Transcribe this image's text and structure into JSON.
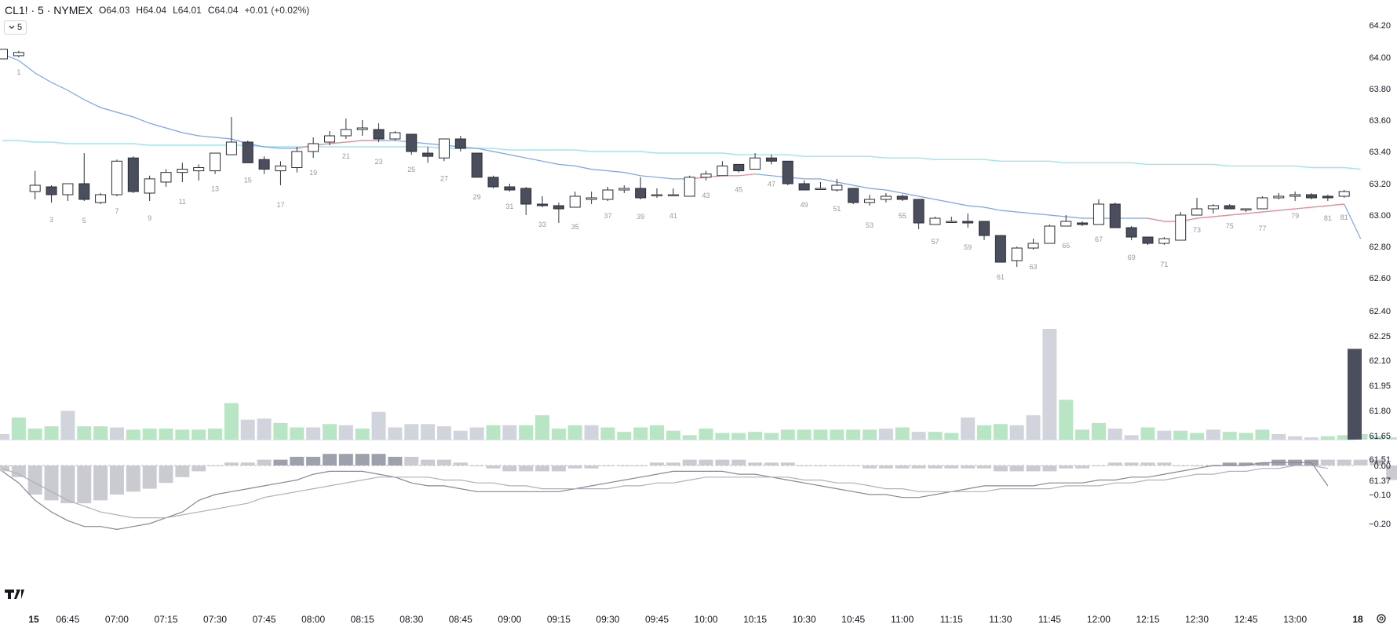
{
  "header": {
    "symbol": "CL1! · 5 · NYMEX",
    "open_key": "O",
    "open_val": "64.03",
    "high_key": "H",
    "high_val": "64.04",
    "low_key": "L",
    "low_val": "64.01",
    "close_key": "C",
    "close_val": "64.04",
    "change": "+0.01 (+0.02%)"
  },
  "collapse_button": {
    "label": "5"
  },
  "colors": {
    "bull_body": "#ffffff",
    "bear_body": "#4b4e5c",
    "candle_border": "#2a2e39",
    "fast_ma": "#7aa3f2",
    "fast_ma_red": "#f28b8b",
    "slow_ma": "#9fe5eb",
    "vol_green": "#b8e5c4",
    "vol_gray": "#d1d4dc",
    "vol_dark": "#4b4e5c",
    "macd_hist": "#c9cbd1",
    "macd_hist_dark": "#9ea1ab",
    "macd_line": "#868993",
    "signal_line": "#aeb1b9"
  },
  "logo": "tradingview-logo",
  "chart_data": [
    {
      "type": "candlestick",
      "title": "CL1! · 5 · NYMEX",
      "x_axis": {
        "tick_labels": [
          "15",
          "06:45",
          "07:00",
          "07:15",
          "07:30",
          "07:45",
          "08:00",
          "08:15",
          "08:30",
          "08:45",
          "09:00",
          "09:15",
          "09:30",
          "09:45",
          "10:00",
          "10:15",
          "10:30",
          "10:45",
          "11:00",
          "11:15",
          "11:30",
          "11:45",
          "12:00",
          "12:15",
          "12:30",
          "12:45",
          "13:00",
          "18"
        ],
        "tick_bar_index": [
          1,
          4,
          7,
          10,
          13,
          16,
          19,
          22,
          25,
          28,
          31,
          34,
          37,
          40,
          43,
          46,
          49,
          52,
          55,
          58,
          61,
          64,
          67,
          70,
          73,
          76,
          79,
          82
        ]
      },
      "y_axis": {
        "tick_labels": [
          "64.20",
          "64.00",
          "63.80",
          "63.60",
          "63.40",
          "63.20",
          "63.00",
          "62.80",
          "62.60",
          "62.40",
          "62.25",
          "62.10",
          "61.95",
          "61.80",
          "61.65",
          "61.51",
          "61.37"
        ],
        "range": [
          61.3,
          64.25
        ]
      },
      "candles": [
        [
          63.99,
          64.05,
          63.99,
          64.05
        ],
        [
          64.01,
          64.04,
          64.0,
          64.03
        ],
        [
          63.15,
          63.28,
          63.1,
          63.19
        ],
        [
          63.18,
          63.19,
          63.08,
          63.13
        ],
        [
          63.13,
          63.2,
          63.09,
          63.2
        ],
        [
          63.2,
          63.39,
          63.09,
          63.1
        ],
        [
          63.08,
          63.14,
          63.07,
          63.13
        ],
        [
          63.13,
          63.35,
          63.12,
          63.34
        ],
        [
          63.36,
          63.37,
          63.14,
          63.15
        ],
        [
          63.14,
          63.25,
          63.09,
          63.23
        ],
        [
          63.21,
          63.29,
          63.18,
          63.27
        ],
        [
          63.27,
          63.33,
          63.21,
          63.29
        ],
        [
          63.28,
          63.32,
          63.22,
          63.3
        ],
        [
          63.28,
          63.39,
          63.26,
          63.39
        ],
        [
          63.38,
          63.62,
          63.38,
          63.46
        ],
        [
          63.46,
          63.47,
          63.33,
          63.33
        ],
        [
          63.35,
          63.37,
          63.26,
          63.29
        ],
        [
          63.28,
          63.34,
          63.19,
          63.31
        ],
        [
          63.3,
          63.43,
          63.27,
          63.4
        ],
        [
          63.4,
          63.49,
          63.36,
          63.45
        ],
        [
          63.46,
          63.53,
          63.44,
          63.5
        ],
        [
          63.5,
          63.61,
          63.48,
          63.54
        ],
        [
          63.54,
          63.6,
          63.5,
          63.55
        ],
        [
          63.54,
          63.58,
          63.46,
          63.48
        ],
        [
          63.48,
          63.53,
          63.47,
          63.52
        ],
        [
          63.51,
          63.51,
          63.38,
          63.4
        ],
        [
          63.39,
          63.43,
          63.33,
          63.37
        ],
        [
          63.36,
          63.48,
          63.34,
          63.48
        ],
        [
          63.48,
          63.5,
          63.4,
          63.42
        ],
        [
          63.39,
          63.39,
          63.24,
          63.24
        ],
        [
          63.24,
          63.25,
          63.17,
          63.18
        ],
        [
          63.18,
          63.2,
          63.15,
          63.16
        ],
        [
          63.17,
          63.18,
          63.0,
          63.07
        ],
        [
          63.07,
          63.12,
          63.05,
          63.06
        ],
        [
          63.06,
          63.08,
          62.95,
          63.04
        ],
        [
          63.05,
          63.15,
          63.05,
          63.12
        ],
        [
          63.1,
          63.15,
          63.07,
          63.11
        ],
        [
          63.1,
          63.18,
          63.09,
          63.16
        ],
        [
          63.16,
          63.19,
          63.14,
          63.17
        ],
        [
          63.17,
          63.24,
          63.1,
          63.11
        ],
        [
          63.13,
          63.17,
          63.11,
          63.13
        ],
        [
          63.13,
          63.17,
          63.12,
          63.13
        ],
        [
          63.12,
          63.25,
          63.12,
          63.24
        ],
        [
          63.24,
          63.28,
          63.22,
          63.26
        ],
        [
          63.25,
          63.34,
          63.25,
          63.31
        ],
        [
          63.32,
          63.32,
          63.27,
          63.28
        ],
        [
          63.29,
          63.39,
          63.29,
          63.36
        ],
        [
          63.36,
          63.38,
          63.32,
          63.34
        ],
        [
          63.34,
          63.34,
          63.19,
          63.2
        ],
        [
          63.2,
          63.22,
          63.16,
          63.16
        ],
        [
          63.17,
          63.21,
          63.16,
          63.17
        ],
        [
          63.16,
          63.23,
          63.15,
          63.19
        ],
        [
          63.17,
          63.17,
          63.07,
          63.08
        ],
        [
          63.08,
          63.13,
          63.06,
          63.1
        ],
        [
          63.1,
          63.14,
          63.08,
          63.12
        ],
        [
          63.12,
          63.13,
          63.09,
          63.1
        ],
        [
          63.1,
          63.1,
          62.91,
          62.95
        ],
        [
          62.94,
          62.99,
          62.94,
          62.98
        ],
        [
          62.96,
          62.99,
          62.95,
          62.96
        ],
        [
          62.96,
          63.01,
          62.92,
          62.95
        ],
        [
          62.96,
          62.96,
          62.84,
          62.87
        ],
        [
          62.87,
          62.87,
          62.7,
          62.7
        ],
        [
          62.71,
          62.8,
          62.67,
          62.79
        ],
        [
          62.79,
          62.85,
          62.78,
          62.82
        ],
        [
          62.82,
          62.94,
          62.82,
          62.93
        ],
        [
          62.93,
          63.0,
          62.93,
          62.96
        ],
        [
          62.95,
          62.96,
          62.93,
          62.94
        ],
        [
          62.94,
          63.1,
          62.94,
          63.07
        ],
        [
          63.07,
          63.08,
          62.92,
          62.92
        ],
        [
          62.92,
          62.93,
          62.84,
          62.86
        ],
        [
          62.86,
          62.86,
          62.81,
          62.82
        ],
        [
          62.82,
          62.86,
          62.81,
          62.85
        ],
        [
          62.84,
          63.02,
          62.84,
          63.0
        ],
        [
          63.0,
          63.11,
          63.0,
          63.04
        ],
        [
          63.04,
          63.07,
          63.01,
          63.06
        ],
        [
          63.06,
          63.07,
          63.04,
          63.04
        ],
        [
          63.04,
          63.04,
          63.02,
          63.04
        ],
        [
          63.04,
          63.12,
          63.04,
          63.11
        ],
        [
          63.11,
          63.14,
          63.1,
          63.12
        ],
        [
          63.12,
          63.15,
          63.09,
          63.13
        ],
        [
          63.13,
          63.14,
          63.1,
          63.11
        ],
        [
          63.12,
          63.13,
          63.09,
          63.11
        ],
        [
          63.12,
          63.16,
          63.11,
          63.15
        ]
      ],
      "bar_numbers": [
        "1",
        "3",
        "5",
        "7",
        "9",
        "11",
        "13",
        "15",
        "17",
        "19",
        "21",
        "23",
        "25",
        "27",
        "29",
        "31",
        "33",
        "35",
        "37",
        "39",
        "41",
        "43",
        "45",
        "47",
        "49",
        "51",
        "53",
        "55",
        "57",
        "59",
        "61",
        "63",
        "65",
        "67",
        "69",
        "71",
        "73",
        "75",
        "77",
        "79",
        "81",
        "81"
      ],
      "fast_ma": [
        64.02,
        63.98,
        63.9,
        63.84,
        63.79,
        63.73,
        63.68,
        63.65,
        63.62,
        63.58,
        63.55,
        63.52,
        63.5,
        63.49,
        63.48,
        63.45,
        63.43,
        63.42,
        63.42,
        63.44,
        63.45,
        63.46,
        63.47,
        63.47,
        63.47,
        63.46,
        63.45,
        63.44,
        63.43,
        63.42,
        63.4,
        63.38,
        63.36,
        63.34,
        63.32,
        63.31,
        63.29,
        63.28,
        63.27,
        63.25,
        63.24,
        63.23,
        63.23,
        63.24,
        63.25,
        63.25,
        63.26,
        63.25,
        63.24,
        63.23,
        63.23,
        63.21,
        63.19,
        63.17,
        63.16,
        63.14,
        63.12,
        63.1,
        63.08,
        63.06,
        63.05,
        63.03,
        63.02,
        63.01,
        63.0,
        62.99,
        62.98,
        62.98,
        62.98,
        62.98,
        62.98,
        62.96,
        62.96,
        62.98,
        62.99,
        63.0,
        63.01,
        63.02,
        63.03,
        63.04,
        63.05,
        63.06,
        63.07,
        62.85
      ],
      "slow_ma": [
        63.47,
        63.47,
        63.46,
        63.46,
        63.45,
        63.45,
        63.45,
        63.45,
        63.45,
        63.44,
        63.44,
        63.44,
        63.44,
        63.44,
        63.44,
        63.44,
        63.43,
        63.43,
        63.43,
        63.43,
        63.43,
        63.43,
        63.43,
        63.43,
        63.43,
        63.43,
        63.43,
        63.42,
        63.42,
        63.42,
        63.42,
        63.41,
        63.41,
        63.41,
        63.41,
        63.41,
        63.4,
        63.4,
        63.4,
        63.4,
        63.39,
        63.39,
        63.39,
        63.39,
        63.39,
        63.38,
        63.38,
        63.38,
        63.38,
        63.37,
        63.37,
        63.37,
        63.37,
        63.37,
        63.36,
        63.36,
        63.36,
        63.35,
        63.35,
        63.35,
        63.35,
        63.34,
        63.34,
        63.34,
        63.34,
        63.33,
        63.33,
        63.33,
        63.33,
        63.33,
        63.32,
        63.32,
        63.32,
        63.32,
        63.32,
        63.31,
        63.31,
        63.31,
        63.31,
        63.31,
        63.3,
        63.3,
        63.3,
        63.29
      ]
    },
    {
      "type": "bar",
      "title": "Volume",
      "values": [
        0.05,
        0.2,
        0.1,
        0.12,
        0.26,
        0.12,
        0.12,
        0.11,
        0.09,
        0.1,
        0.1,
        0.09,
        0.09,
        0.1,
        0.33,
        0.18,
        0.19,
        0.15,
        0.11,
        0.11,
        0.14,
        0.13,
        0.1,
        0.25,
        0.11,
        0.14,
        0.14,
        0.12,
        0.08,
        0.11,
        0.13,
        0.13,
        0.13,
        0.22,
        0.1,
        0.13,
        0.13,
        0.11,
        0.07,
        0.11,
        0.13,
        0.08,
        0.04,
        0.1,
        0.06,
        0.06,
        0.07,
        0.06,
        0.09,
        0.09,
        0.09,
        0.09,
        0.09,
        0.09,
        0.1,
        0.11,
        0.07,
        0.07,
        0.06,
        0.2,
        0.13,
        0.14,
        0.13,
        0.22,
        1.0,
        0.36,
        0.09,
        0.15,
        0.1,
        0.04,
        0.11,
        0.08,
        0.08,
        0.06,
        0.09,
        0.07,
        0.06,
        0.09,
        0.05,
        0.03,
        0.02,
        0.03,
        0.04,
        0.05,
        0.03,
        0.02,
        0.03,
        0.82
      ],
      "colors": [
        "gray",
        "green",
        "green",
        "green",
        "gray",
        "green",
        "green",
        "gray",
        "green",
        "green",
        "green",
        "green",
        "green",
        "green",
        "green",
        "gray",
        "gray",
        "green",
        "green",
        "gray",
        "green",
        "gray",
        "green",
        "gray",
        "gray",
        "gray",
        "gray",
        "gray",
        "gray",
        "gray",
        "green",
        "gray",
        "green",
        "green",
        "green",
        "green",
        "gray",
        "green",
        "green",
        "green",
        "green",
        "green",
        "green",
        "green",
        "green",
        "green",
        "green",
        "green",
        "green",
        "green",
        "green",
        "green",
        "green",
        "green",
        "gray",
        "green",
        "gray",
        "green",
        "green",
        "gray",
        "green",
        "green",
        "gray",
        "gray",
        "gray",
        "green",
        "green",
        "green",
        "gray",
        "gray",
        "green",
        "gray",
        "green",
        "green",
        "gray",
        "green",
        "green",
        "green",
        "gray",
        "gray",
        "gray",
        "green",
        "green",
        "green",
        "green",
        "green",
        "gray",
        "dark"
      ]
    },
    {
      "type": "bar",
      "title": "MACD",
      "y_axis": {
        "tick_labels": [
          "0.00",
          "−0.10",
          "−0.20"
        ],
        "range": [
          -0.22,
          0.05
        ]
      },
      "histogram": [
        -0.02,
        -0.04,
        -0.1,
        -0.12,
        -0.13,
        -0.13,
        -0.12,
        -0.1,
        -0.09,
        -0.08,
        -0.06,
        -0.04,
        -0.02,
        0.0,
        0.01,
        0.01,
        0.02,
        0.02,
        0.03,
        0.03,
        0.04,
        0.04,
        0.04,
        0.04,
        0.03,
        0.03,
        0.02,
        0.02,
        0.01,
        0.0,
        -0.01,
        -0.02,
        -0.02,
        -0.02,
        -0.02,
        -0.01,
        -0.01,
        0.0,
        0.0,
        0.0,
        0.01,
        0.01,
        0.02,
        0.02,
        0.02,
        0.02,
        0.01,
        0.01,
        0.01,
        0.0,
        0.0,
        0.0,
        0.0,
        -0.01,
        -0.01,
        -0.01,
        -0.01,
        -0.01,
        -0.01,
        -0.01,
        -0.01,
        -0.02,
        -0.02,
        -0.02,
        -0.02,
        -0.01,
        -0.01,
        0.0,
        0.01,
        0.01,
        0.01,
        0.01,
        0.0,
        0.0,
        0.0,
        0.01,
        0.01,
        0.01,
        0.02,
        0.02,
        0.02,
        0.02,
        0.02,
        0.02,
        0.02,
        -0.05
      ],
      "macd": [
        -0.02,
        -0.06,
        -0.12,
        -0.16,
        -0.19,
        -0.21,
        -0.21,
        -0.22,
        -0.21,
        -0.2,
        -0.18,
        -0.16,
        -0.12,
        -0.1,
        -0.09,
        -0.08,
        -0.07,
        -0.06,
        -0.05,
        -0.03,
        -0.02,
        -0.02,
        -0.02,
        -0.03,
        -0.04,
        -0.06,
        -0.07,
        -0.07,
        -0.08,
        -0.09,
        -0.09,
        -0.09,
        -0.09,
        -0.09,
        -0.09,
        -0.08,
        -0.07,
        -0.06,
        -0.05,
        -0.04,
        -0.03,
        -0.02,
        -0.02,
        -0.02,
        -0.02,
        -0.03,
        -0.03,
        -0.04,
        -0.05,
        -0.06,
        -0.07,
        -0.08,
        -0.09,
        -0.1,
        -0.1,
        -0.11,
        -0.11,
        -0.1,
        -0.09,
        -0.08,
        -0.07,
        -0.07,
        -0.07,
        -0.07,
        -0.06,
        -0.06,
        -0.06,
        -0.05,
        -0.05,
        -0.04,
        -0.04,
        -0.03,
        -0.02,
        -0.01,
        0.0,
        0.0,
        0.0,
        0.01,
        0.01,
        0.01,
        0.01,
        -0.07
      ],
      "signal": [
        -0.01,
        -0.03,
        -0.06,
        -0.09,
        -0.12,
        -0.14,
        -0.16,
        -0.17,
        -0.18,
        -0.18,
        -0.18,
        -0.17,
        -0.16,
        -0.15,
        -0.14,
        -0.13,
        -0.11,
        -0.1,
        -0.09,
        -0.08,
        -0.07,
        -0.06,
        -0.05,
        -0.04,
        -0.04,
        -0.04,
        -0.04,
        -0.05,
        -0.05,
        -0.06,
        -0.06,
        -0.07,
        -0.07,
        -0.08,
        -0.08,
        -0.08,
        -0.08,
        -0.08,
        -0.07,
        -0.07,
        -0.06,
        -0.06,
        -0.05,
        -0.04,
        -0.04,
        -0.04,
        -0.04,
        -0.04,
        -0.04,
        -0.05,
        -0.05,
        -0.06,
        -0.06,
        -0.07,
        -0.08,
        -0.08,
        -0.09,
        -0.09,
        -0.09,
        -0.09,
        -0.09,
        -0.08,
        -0.08,
        -0.08,
        -0.08,
        -0.07,
        -0.07,
        -0.07,
        -0.06,
        -0.06,
        -0.05,
        -0.05,
        -0.04,
        -0.03,
        -0.03,
        -0.02,
        -0.02,
        -0.01,
        -0.01,
        0.0,
        0.0,
        -0.01
      ]
    }
  ]
}
